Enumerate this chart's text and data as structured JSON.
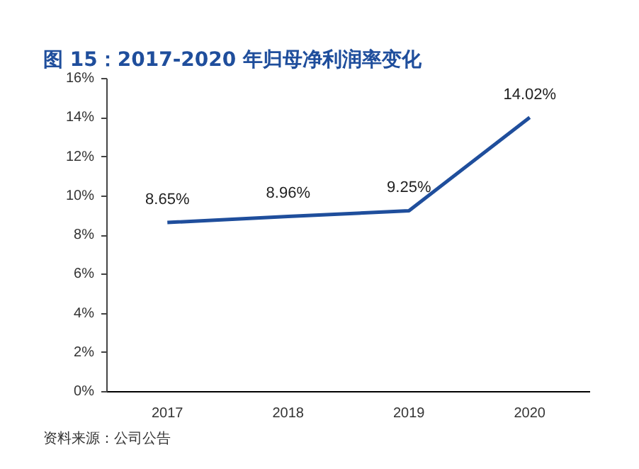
{
  "chart_data": {
    "type": "line",
    "title": "图 15：2017-2020 年归母净利润率变化",
    "categories": [
      "2017",
      "2018",
      "2019",
      "2020"
    ],
    "series": [
      {
        "color": "#1f4e9c",
        "values": [
          8.65,
          8.96,
          9.25,
          14.02
        ]
      }
    ],
    "value_labels": [
      "8.65%",
      "8.96%",
      "9.25%",
      "14.02%"
    ],
    "ylim": [
      0,
      16
    ],
    "yticks": [
      {
        "value": 0,
        "label": "0%"
      },
      {
        "value": 2,
        "label": "2%"
      },
      {
        "value": 4,
        "label": "4%"
      },
      {
        "value": 6,
        "label": "6%"
      },
      {
        "value": 8,
        "label": "8%"
      },
      {
        "value": 10,
        "label": "10%"
      },
      {
        "value": 12,
        "label": "12%"
      },
      {
        "value": 14,
        "label": "14%"
      },
      {
        "value": 16,
        "label": "16%"
      }
    ],
    "grid": false,
    "marker": "none",
    "line_style": "solid",
    "annotations": [
      "资料来源：公司公告"
    ]
  }
}
